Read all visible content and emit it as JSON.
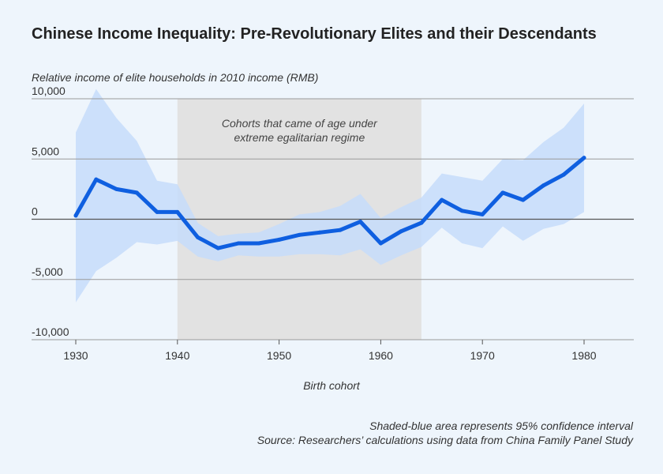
{
  "title": "Chinese Income Inequality: Pre-Revolutionary Elites and their Descendants",
  "notes": {
    "ci": "Shaded-blue area represents 95% confidence interval",
    "source": "Source: Researchers’ calculations using data from China Family Panel Study"
  },
  "chart_data": {
    "type": "line",
    "title": "Chinese Income Inequality: Pre-Revolutionary Elites and their Descendants",
    "ylabel": "Relative income of elite households in 2010 income (RMB)",
    "xlabel": "Birth cohort",
    "xlim": [
      1930,
      1985
    ],
    "ylim": [
      -10000,
      10000
    ],
    "x_ticks": [
      1930,
      1940,
      1950,
      1960,
      1970,
      1980
    ],
    "y_ticks": [
      10000,
      5000,
      0,
      -5000,
      -10000
    ],
    "y_tick_labels": [
      "10,000",
      "5,000",
      "0",
      "-5,000",
      "-10,000"
    ],
    "shaded_region": {
      "x_start": 1940,
      "x_end": 1964,
      "label_line1": "Cohorts that came of age under",
      "label_line2": "extreme egalitarian regime"
    },
    "colors": {
      "line": "#0f5fe0",
      "band": "#c6dcfa",
      "shade": "#e2e2e2",
      "grid": "#9a9a9a"
    },
    "x": [
      1930,
      1932,
      1934,
      1936,
      1938,
      1940,
      1942,
      1944,
      1946,
      1948,
      1950,
      1952,
      1954,
      1956,
      1958,
      1960,
      1962,
      1964,
      1966,
      1968,
      1970,
      1972,
      1974,
      1976,
      1978,
      1980
    ],
    "series": [
      {
        "name": "Relative income",
        "values": [
          300,
          3300,
          2500,
          2200,
          600,
          600,
          -1500,
          -2400,
          -2000,
          -2000,
          -1700,
          -1300,
          -1100,
          -900,
          -200,
          -2000,
          -1000,
          -300,
          1600,
          700,
          400,
          2200,
          1600,
          2800,
          3700,
          5100
        ]
      }
    ],
    "ci_upper": [
      7200,
      10800,
      8400,
      6500,
      3200,
      2900,
      -300,
      -1400,
      -1200,
      -1100,
      -400,
      400,
      600,
      1100,
      2100,
      100,
      1000,
      1800,
      3800,
      3500,
      3200,
      5000,
      4900,
      6400,
      7600,
      9600
    ],
    "ci_lower": [
      -6900,
      -4300,
      -3200,
      -1900,
      -2100,
      -1800,
      -3100,
      -3500,
      -3000,
      -3100,
      -3100,
      -2900,
      -2900,
      -3000,
      -2500,
      -3800,
      -3000,
      -2300,
      -700,
      -2000,
      -2400,
      -600,
      -1800,
      -800,
      -400,
      600
    ]
  }
}
